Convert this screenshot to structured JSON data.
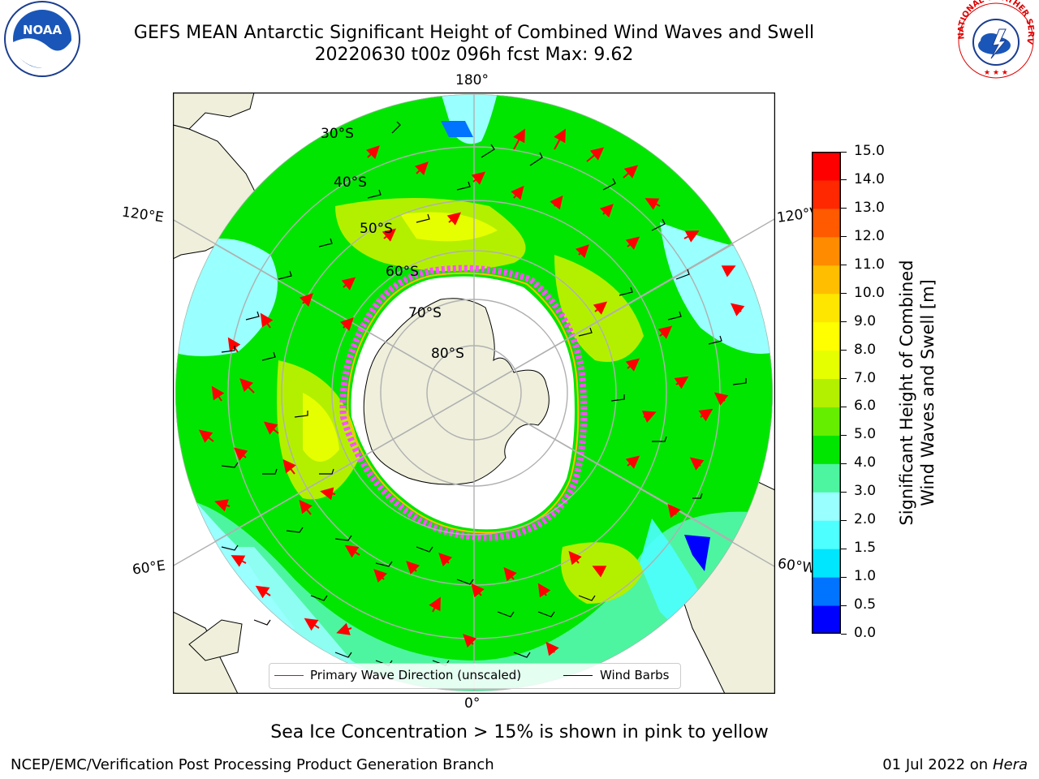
{
  "title": {
    "line1": "GEFS MEAN Antarctic Significant Height of Combined Wind Waves and Swell",
    "line2": "20220630 t00z 096h fcst   Max: 9.62"
  },
  "map": {
    "projection": "south-polar-stereographic",
    "lon_labels": {
      "top": "180°",
      "bottom": "0°",
      "left_upper": "120°E",
      "right_upper": "120°W",
      "left_lower": "60°E",
      "right_lower": "60°W"
    },
    "lat_labels": [
      "30°S",
      "40°S",
      "50°S",
      "60°S",
      "70°S",
      "80°S"
    ],
    "sea_ice_colors": [
      "#ff4fff",
      "#ffc000"
    ]
  },
  "colorbar": {
    "label_line1": "Significant Height of Combined",
    "label_line2": "Wind Waves and Swell [m]",
    "ticks": [
      "0.0",
      "0.5",
      "1.0",
      "1.5",
      "2.0",
      "3.0",
      "4.0",
      "5.0",
      "6.0",
      "7.0",
      "8.0",
      "9.0",
      "10.0",
      "11.0",
      "12.0",
      "13.0",
      "14.0",
      "15.0"
    ],
    "colors": [
      "#0000ff",
      "#0073ff",
      "#00e6ff",
      "#4dffff",
      "#99ffff",
      "#4df5a0",
      "#00e600",
      "#66ee00",
      "#b3f000",
      "#e6ff00",
      "#ffff00",
      "#ffe600",
      "#ffbf00",
      "#ff8c00",
      "#ff5a00",
      "#ff2800",
      "#ff0000"
    ]
  },
  "legend": {
    "wave_label": "Primary Wave Direction (unscaled)",
    "barb_label": "Wind Barbs",
    "wave_color": "#ff0000",
    "barb_color": "#000000"
  },
  "subcaption": "Sea Ice Concentration > 15% is shown in pink to yellow",
  "footer": {
    "left": "NCEP/EMC/Verification Post Processing Product Generation Branch",
    "right_date": "01 Jul 2022 on ",
    "right_machine": "Hera"
  },
  "logos": {
    "left_text": "NOAA",
    "right_text": "NATIONAL WEATHER SERVICE"
  }
}
